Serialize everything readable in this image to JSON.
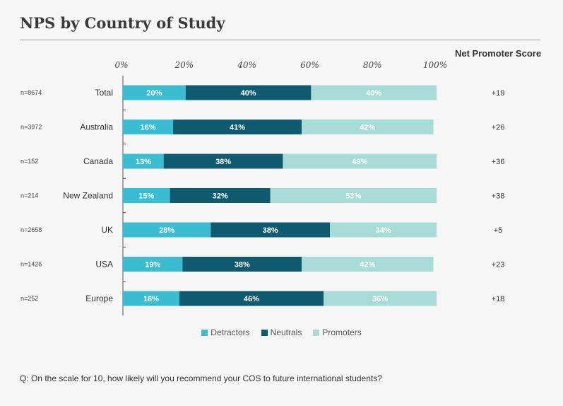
{
  "title": "NPS by Country of Study",
  "nps_header": "Net Promoter Score",
  "question": "Q: On the scale for 10, how likely will you recommend your COS to future international students?",
  "colors": {
    "detractors": "#3bbcd0",
    "neutrals": "#0f5a6e",
    "promoters": "#a8dcd6"
  },
  "chart_data": {
    "type": "bar",
    "orientation": "horizontal",
    "stacked": true,
    "x_ticks": [
      "0%",
      "20%",
      "40%",
      "60%",
      "80%",
      "100%"
    ],
    "xlim": [
      0,
      100
    ],
    "categories": [
      "Total",
      "Australia",
      "Canada",
      "New Zealand",
      "UK",
      "USA",
      "Europe"
    ],
    "sample_sizes": [
      "n=8674",
      "n=3972",
      "n=152",
      "n=214",
      "n=2658",
      "n=1426",
      "n=252"
    ],
    "series": [
      {
        "name": "Detractors",
        "values": [
          20,
          16,
          13,
          15,
          28,
          19,
          18
        ]
      },
      {
        "name": "Neutrals",
        "values": [
          40,
          41,
          38,
          32,
          38,
          38,
          46
        ]
      },
      {
        "name": "Promoters",
        "values": [
          40,
          42,
          49,
          53,
          34,
          42,
          36
        ]
      }
    ],
    "nps": [
      "+19",
      "+26",
      "+36",
      "+38",
      "+5",
      "+23",
      "+18"
    ],
    "legend_position": "bottom",
    "grid": false
  }
}
